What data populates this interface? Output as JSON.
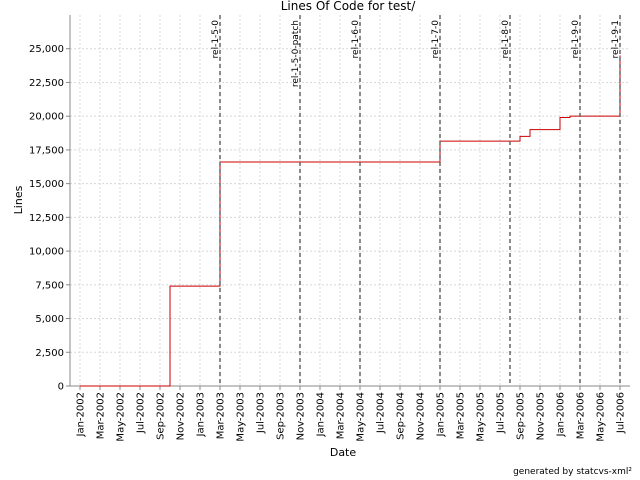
{
  "chart_data": {
    "type": "step",
    "title": "Lines Of Code for test/",
    "x_label": "Date",
    "y_label": "Lines",
    "footer": "generated by statcvs-xml²",
    "x": [
      "Jan-2002",
      "Oct-2002",
      "Mar-2003",
      "Jan-2005",
      "Sep-2005",
      "Oct-2005",
      "Jan-2006",
      "Feb-2006",
      "Jul-2006"
    ],
    "values": [
      0,
      7400,
      16600,
      18150,
      18500,
      19000,
      19900,
      20000,
      24500
    ],
    "color": "#cc0000",
    "xlim": [
      "Dec-2001",
      "Aug-2006"
    ],
    "xticks": [
      "Jan-2002",
      "Mar-2002",
      "May-2002",
      "Jul-2002",
      "Sep-2002",
      "Nov-2002",
      "Jan-2003",
      "Mar-2003",
      "May-2003",
      "Jul-2003",
      "Sep-2003",
      "Nov-2003",
      "Jan-2004",
      "Mar-2004",
      "May-2004",
      "Jul-2004",
      "Sep-2004",
      "Nov-2004",
      "Jan-2005",
      "Mar-2005",
      "May-2005",
      "Jul-2005",
      "Sep-2005",
      "Nov-2005",
      "Jan-2006",
      "Mar-2006",
      "May-2006",
      "Jul-2006"
    ],
    "ylim": [
      0,
      27500
    ],
    "yticks": [
      0,
      {
        "value": 2500,
        "label": "2,500"
      },
      {
        "value": 5000,
        "label": "5,000"
      },
      {
        "value": 7500,
        "label": "7,500"
      },
      {
        "value": 10000,
        "label": "10,000"
      },
      {
        "value": 12500,
        "label": "12,500"
      },
      {
        "value": 15000,
        "label": "15,000"
      },
      {
        "value": 17500,
        "label": "17,500"
      },
      {
        "value": 20000,
        "label": "20,000"
      },
      {
        "value": 22500,
        "label": "22,500"
      },
      {
        "value": 25000,
        "label": "25,000"
      }
    ],
    "grid": true,
    "releases": [
      {
        "label": "rel-1-5-0",
        "x": "Mar-2003"
      },
      {
        "label": "rel-1-5-0-patch",
        "x": "Nov-2003"
      },
      {
        "label": "rel-1-6-0",
        "x": "May-2004"
      },
      {
        "label": "rel-1-7-0",
        "x": "Jan-2005"
      },
      {
        "label": "rel-1-8-0",
        "x": "Aug-2005"
      },
      {
        "label": "rel-1-9-0",
        "x": "Mar-2006"
      },
      {
        "label": "rel-1-9-1",
        "x": "Jul-2006"
      }
    ]
  }
}
